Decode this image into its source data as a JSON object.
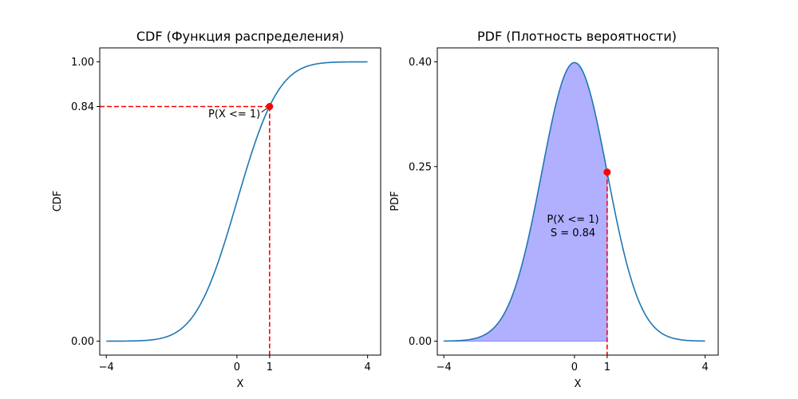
{
  "colors": {
    "curve": "#1f77b4",
    "marker": "#ff0000",
    "guide": "#ff0000",
    "fill": "#b0b0ff",
    "fill_edge": "#8c8cff"
  },
  "chart_data": [
    {
      "type": "line",
      "title": "CDF (Функция распределения)",
      "xlabel": "X",
      "ylabel": "CDF",
      "xlim": [
        -4.2,
        4.4
      ],
      "ylim": [
        -0.05,
        1.05
      ],
      "xticks": [
        -4,
        0,
        1,
        4
      ],
      "xtick_labels": [
        "−4",
        "0",
        "1",
        "4"
      ],
      "yticks": [
        0,
        0.84,
        1
      ],
      "ytick_labels": [
        "0.00",
        "0.84",
        "1.00"
      ],
      "series": [
        {
          "x_range": [
            -4,
            4
          ],
          "function": "standard normal CDF"
        }
      ],
      "point": {
        "x": 1,
        "y": 0.84
      },
      "annotation": "P(X <= 1)",
      "grid": false
    },
    {
      "type": "area",
      "title": "PDF (Плотность вероятности)",
      "xlabel": "X",
      "ylabel": "PDF",
      "xlim": [
        -4.2,
        4.4
      ],
      "ylim": [
        -0.02,
        0.42
      ],
      "xticks": [
        -4,
        0,
        1,
        4
      ],
      "xtick_labels": [
        "−4",
        "0",
        "1",
        "4"
      ],
      "yticks": [
        0,
        0.25,
        0.4
      ],
      "ytick_labels": [
        "0.00",
        "0.25",
        "0.40"
      ],
      "series": [
        {
          "x_range": [
            -4,
            4
          ],
          "function": "standard normal PDF"
        }
      ],
      "shaded_range": [
        -4,
        1
      ],
      "point": {
        "x": 1,
        "y": 0.242
      },
      "annotation_lines": [
        "P(X <= 1)",
        "S = 0.84"
      ],
      "grid": false
    }
  ]
}
